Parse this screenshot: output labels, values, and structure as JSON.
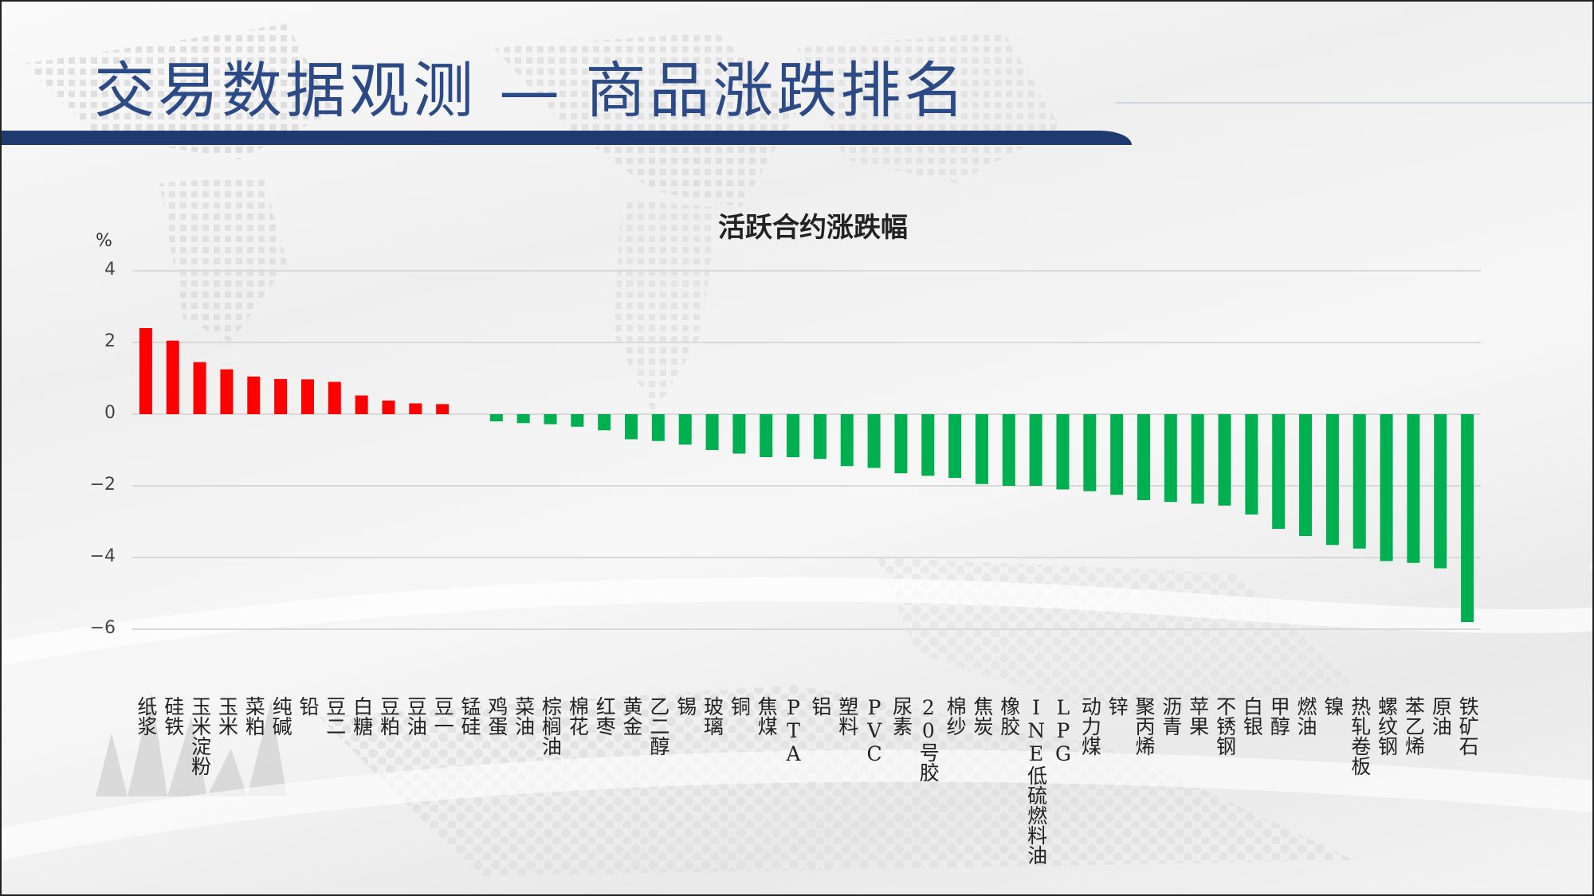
{
  "slide": {
    "title": "交易数据观测 — 商品涨跌排名"
  },
  "colors": {
    "title": "#2c4a86",
    "band": "#1f3a6e",
    "up": "#ff0000",
    "down": "#00b050",
    "grid": "#d9d9d9"
  },
  "chart_data": {
    "type": "bar",
    "title": "活跃合约涨跌幅",
    "ylabel": "%",
    "xlabel": "",
    "ylim": [
      -7,
      4
    ],
    "yticks": [
      4,
      2,
      0,
      -2,
      -4,
      -6
    ],
    "ytick_labels": [
      "4",
      "2",
      "0",
      "−2",
      "−4",
      "−6"
    ],
    "grid": true,
    "legend": "none",
    "categories": [
      "纸浆",
      "硅铁",
      "玉米淀粉",
      "玉米",
      "菜粕",
      "纯碱",
      "铅",
      "豆二",
      "白糖",
      "豆粕",
      "豆油",
      "豆一",
      "锰硅",
      "鸡蛋",
      "菜油",
      "棕榈油",
      "棉花",
      "红枣",
      "黄金",
      "乙二醇",
      "锡",
      "玻璃",
      "铜",
      "焦煤",
      "PTA",
      "铝",
      "塑料",
      "PVC",
      "尿素",
      "20号胶",
      "棉纱",
      "焦炭",
      "橡胶",
      "INE低硫燃料油",
      "LPG",
      "动力煤",
      "锌",
      "聚丙烯",
      "沥青",
      "苹果",
      "不锈钢",
      "白银",
      "甲醇",
      "燃油",
      "镍",
      "热轧卷板",
      "螺纹钢",
      "苯乙烯",
      "原油",
      "铁矿石"
    ],
    "values": [
      2.4,
      2.05,
      1.45,
      1.25,
      1.05,
      0.98,
      0.97,
      0.9,
      0.52,
      0.38,
      0.3,
      0.28,
      0.0,
      -0.2,
      -0.25,
      -0.28,
      -0.35,
      -0.45,
      -0.7,
      -0.75,
      -0.85,
      -1.0,
      -1.1,
      -1.2,
      -1.2,
      -1.25,
      -1.45,
      -1.5,
      -1.65,
      -1.72,
      -1.78,
      -1.95,
      -2.0,
      -2.0,
      -2.1,
      -2.15,
      -2.25,
      -2.4,
      -2.45,
      -2.5,
      -2.55,
      -2.8,
      -3.2,
      -3.4,
      -3.65,
      -3.75,
      -4.1,
      -4.15,
      -4.3,
      -5.8
    ]
  }
}
